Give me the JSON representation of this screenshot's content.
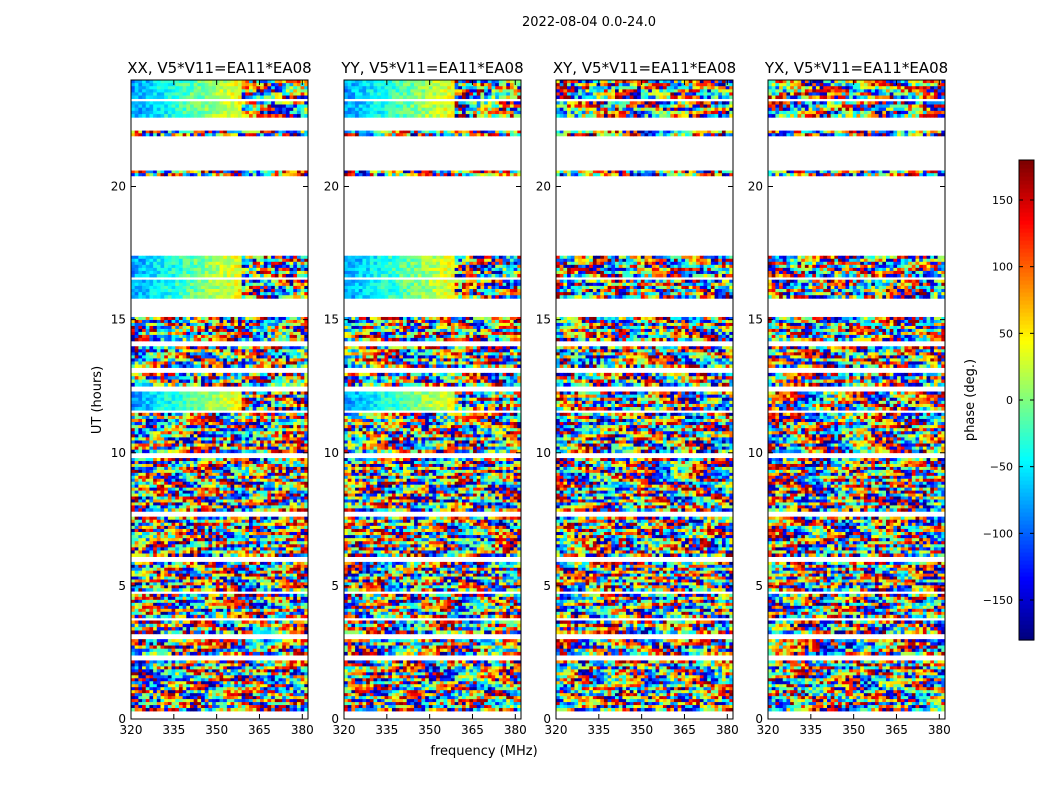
{
  "figure": {
    "suptitle": "2022-08-04 0.0-24.0",
    "ylabel": "UT (hours)",
    "xlabel": "frequency (MHz)",
    "colorbar_label": "phase (deg.)",
    "colormap": [
      "#00007f",
      "#0000ff",
      "#007fff",
      "#00ffff",
      "#7fff7f",
      "#ffff00",
      "#ff7f00",
      "#ff0000",
      "#7f0000"
    ]
  },
  "chart_data": {
    "type": "heatmap",
    "xlim": [
      320,
      382
    ],
    "ylim": [
      0,
      24
    ],
    "xticks": [
      320,
      335,
      350,
      365,
      380
    ],
    "yticks": [
      0,
      5,
      10,
      15,
      20
    ],
    "clim": [
      -180,
      180
    ],
    "colorbar_ticks": [
      -150,
      -100,
      -50,
      0,
      50,
      100,
      150
    ],
    "panels": [
      {
        "title": "XX, V5*V11=EA11*EA08",
        "coherent": true
      },
      {
        "title": "YY, V5*V11=EA11*EA08",
        "coherent": true
      },
      {
        "title": "XY, V5*V11=EA11*EA08",
        "coherent": false
      },
      {
        "title": "YX, V5*V11=EA11*EA08",
        "coherent": false
      }
    ],
    "data_segments_ut": [
      [
        0.3,
        2.2
      ],
      [
        2.4,
        3.0
      ],
      [
        3.2,
        3.7
      ],
      [
        3.8,
        4.7
      ],
      [
        4.8,
        5.9
      ],
      [
        6.1,
        7.6
      ],
      [
        7.8,
        9.8
      ],
      [
        10.0,
        11.5
      ],
      [
        11.6,
        12.3
      ],
      [
        12.5,
        13.0
      ],
      [
        13.2,
        14.0
      ],
      [
        14.2,
        15.1
      ],
      [
        15.8,
        16.5
      ],
      [
        16.6,
        17.4
      ],
      [
        20.4,
        20.6
      ],
      [
        21.9,
        22.1
      ],
      [
        22.6,
        23.2
      ],
      [
        23.3,
        24.0
      ]
    ]
  }
}
